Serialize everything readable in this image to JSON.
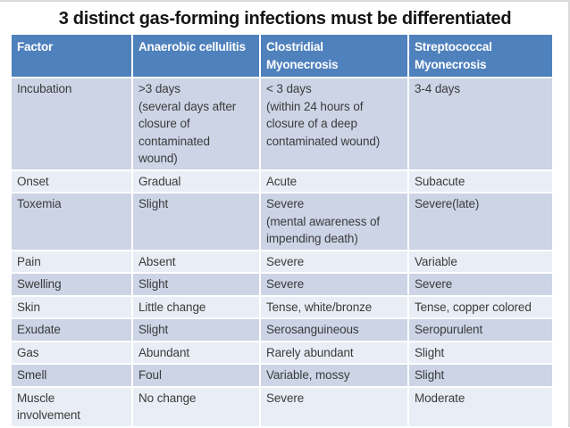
{
  "slide": {
    "title": "3 distinct gas-forming infections must be differentiated"
  },
  "table": {
    "headers": [
      "Factor",
      "Anaerobic cellulitis",
      "Clostridial\nMyonecrosis",
      "Streptococcal\nMyonecrosis"
    ],
    "rows": [
      [
        "Incubation",
        ">3 days\n(several days after\nclosure of\ncontaminated\nwound)",
        "< 3 days\n(within 24 hours of\nclosure of a deep\ncontaminated wound)",
        "3-4 days"
      ],
      [
        "Onset",
        "Gradual",
        "Acute",
        "Subacute"
      ],
      [
        "Toxemia",
        "Slight",
        "Severe\n(mental awareness of\nimpending death)",
        "Severe(late)"
      ],
      [
        "Pain",
        "Absent",
        "Severe",
        "Variable"
      ],
      [
        "Swelling",
        "Slight",
        "Severe",
        "Severe"
      ],
      [
        "Skin",
        "Little change",
        "Tense, white/bronze",
        "Tense, copper colored"
      ],
      [
        "Exudate",
        "Slight",
        "Serosanguineous",
        "Seropurulent"
      ],
      [
        "Gas",
        "Abundant",
        "Rarely abundant",
        "Slight"
      ],
      [
        "Smell",
        "Foul",
        "Variable, mossy",
        "Slight"
      ],
      [
        "Muscle\ninvolvement",
        "No change",
        "Severe",
        "Moderate"
      ]
    ]
  },
  "colors": {
    "header_bg": "#4f81bd",
    "band_row_bg": "#ccd4e6",
    "light_row_bg": "#e9eef6",
    "header_text": "#ffffff",
    "body_text": "#3b3b3b",
    "title_text": "#141414"
  }
}
